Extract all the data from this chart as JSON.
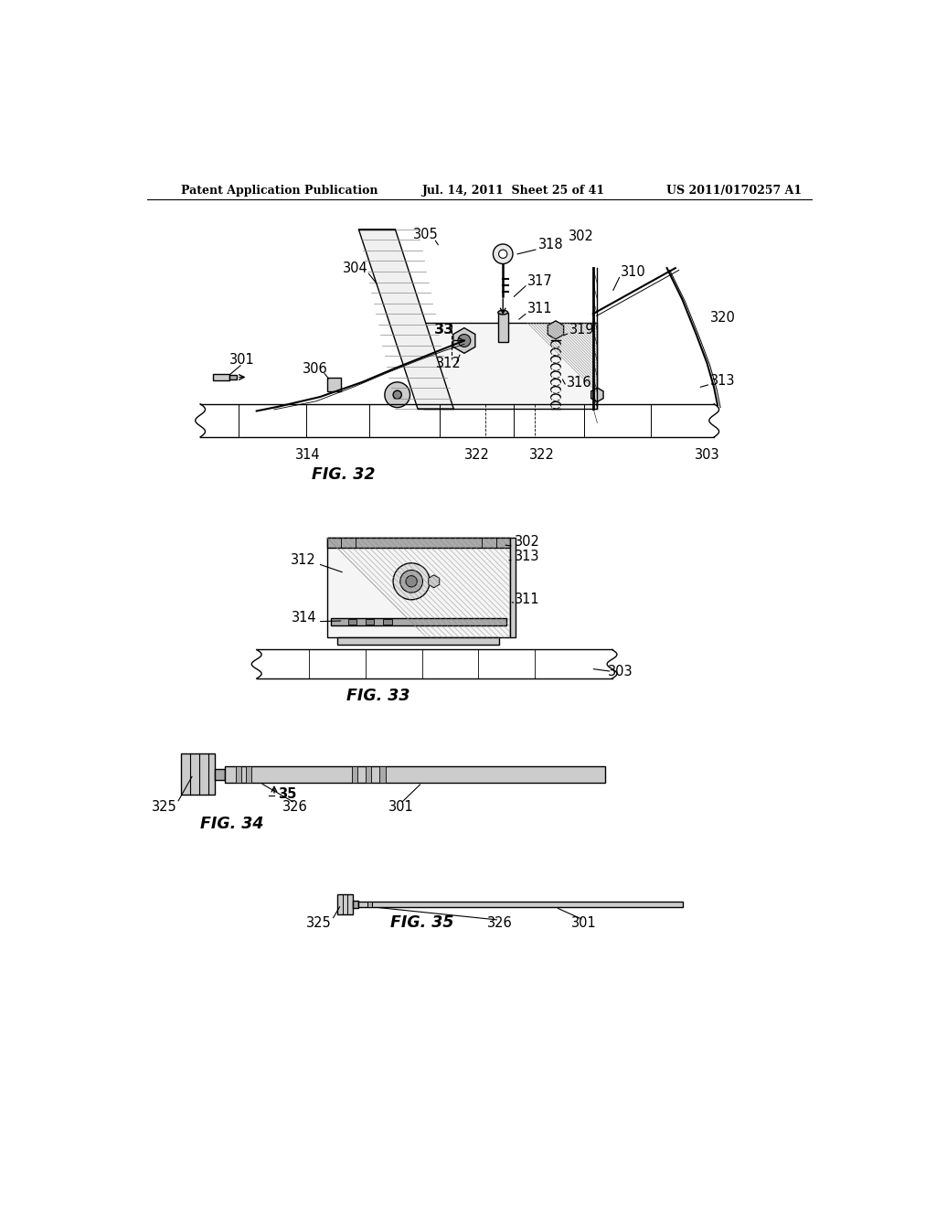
{
  "bg_color": "#ffffff",
  "text_color": "#000000",
  "header_left": "Patent Application Publication",
  "header_mid": "Jul. 14, 2011  Sheet 25 of 41",
  "header_right": "US 2011/0170257 A1",
  "fig32_label": "FIG. 32",
  "fig33_label": "FIG. 33",
  "fig34_label": "FIG. 34",
  "fig35_label": "FIG. 35",
  "lc": "#000000",
  "gray1": "#cccccc",
  "gray2": "#aaaaaa",
  "gray3": "#888888",
  "white": "#ffffff"
}
